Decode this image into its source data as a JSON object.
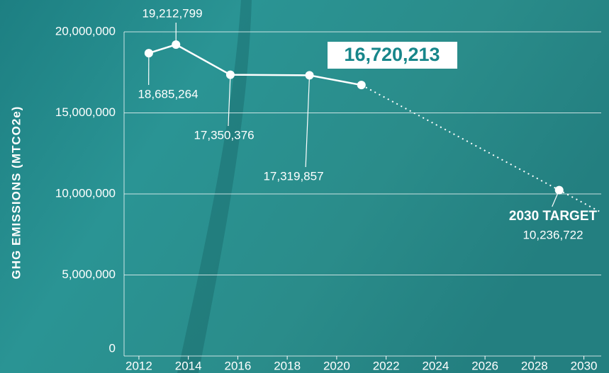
{
  "chart_data": {
    "type": "line",
    "y_label": "GHG EMISSIONS (MTCO2e)",
    "x": [
      2012.4,
      2013.5,
      2015.7,
      2018.9,
      2021
    ],
    "values": [
      18685264,
      19212799,
      17350376,
      17319857,
      16720213
    ],
    "value_labels": [
      "18,685,264",
      "19,212,799",
      "17,350,376",
      "17,319,857",
      "16,720,213"
    ],
    "color": "#ffffff",
    "target": {
      "label": "2030 TARGET",
      "x": 2029,
      "value": 10236722,
      "value_label": "10,236,722",
      "line_style": "dotted"
    },
    "xlim": [
      2011.4,
      2030.7
    ],
    "xticks": [
      2012,
      2014,
      2016,
      2018,
      2020,
      2022,
      2024,
      2026,
      2028,
      2030
    ],
    "ylim": [
      0,
      20000000
    ],
    "yticks": [
      0,
      {
        "value": 5000000,
        "label": "5,000,000"
      },
      {
        "value": 10000000,
        "label": "10,000,000"
      },
      {
        "value": 15000000,
        "label": "15,000,000"
      },
      {
        "value": 20000000,
        "label": "20,000,000"
      }
    ],
    "grid": true
  }
}
